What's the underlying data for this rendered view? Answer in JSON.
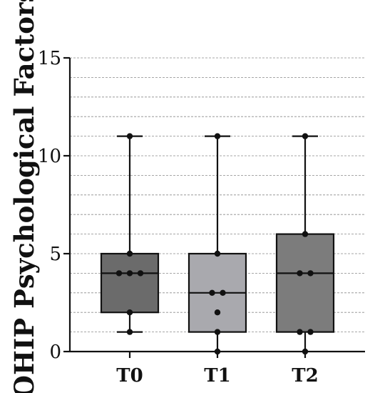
{
  "chart_data": {
    "type": "box",
    "title": "",
    "xlabel": "",
    "ylabel": "OHIP Psychological Factors",
    "ylim": [
      0,
      15
    ],
    "y_ticks": [
      0,
      5,
      10,
      15
    ],
    "y_minor_gridlines_step": 1,
    "grid": "horizontal dashed",
    "categories": [
      "T0",
      "T1",
      "T2"
    ],
    "boxes": [
      {
        "name": "T0",
        "min": 1,
        "q1": 2,
        "median": 4,
        "q3": 5,
        "max": 11,
        "color": "#6b6b6b",
        "points": [
          1,
          2,
          4,
          4,
          4,
          5,
          11
        ]
      },
      {
        "name": "T1",
        "min": 0,
        "q1": 1,
        "median": 3,
        "q3": 5,
        "max": 11,
        "color": "#a9a9ae",
        "points": [
          0,
          1,
          2,
          3,
          3,
          5,
          11
        ]
      },
      {
        "name": "T2",
        "min": 0,
        "q1": 1,
        "median": 4,
        "q3": 6,
        "max": 11,
        "color": "#7c7c7c",
        "points": [
          0,
          1,
          1,
          4,
          4,
          6,
          11
        ]
      }
    ]
  }
}
